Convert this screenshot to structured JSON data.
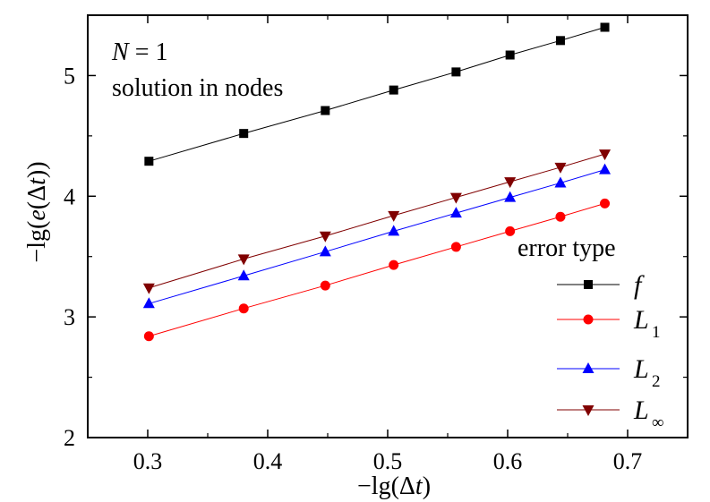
{
  "chart_data": {
    "type": "line",
    "xlabel": "−lg(Δt)",
    "ylabel": "−lg(e(Δt))",
    "xlim": [
      0.25,
      0.75
    ],
    "ylim": [
      2,
      5.5
    ],
    "xticks": [
      "0.3",
      "0.4",
      "0.5",
      "0.6",
      "0.7"
    ],
    "yticks": [
      "2",
      "3",
      "4",
      "5"
    ],
    "grid": false,
    "legend_position": "right",
    "legend_title": "error type",
    "annotations": [
      "N = 1",
      "solution in nodes"
    ],
    "x": [
      0.301,
      0.38,
      0.448,
      0.505,
      0.557,
      0.602,
      0.644,
      0.681
    ],
    "series": [
      {
        "name": "f",
        "sub": "",
        "color": "#000000",
        "marker": "square",
        "values": [
          4.29,
          4.52,
          4.71,
          4.88,
          5.03,
          5.17,
          5.29,
          5.4
        ]
      },
      {
        "name": "L",
        "sub": "1",
        "color": "#ff0000",
        "marker": "circle",
        "values": [
          2.84,
          3.07,
          3.26,
          3.43,
          3.58,
          3.71,
          3.83,
          3.94
        ]
      },
      {
        "name": "L",
        "sub": "2",
        "color": "#0000ff",
        "marker": "triangle-up",
        "values": [
          3.11,
          3.34,
          3.54,
          3.71,
          3.86,
          3.99,
          4.11,
          4.22
        ]
      },
      {
        "name": "L",
        "sub": "∞",
        "color": "#800000",
        "marker": "triangle-down",
        "values": [
          3.24,
          3.48,
          3.67,
          3.84,
          3.99,
          4.12,
          4.24,
          4.35
        ]
      }
    ]
  }
}
